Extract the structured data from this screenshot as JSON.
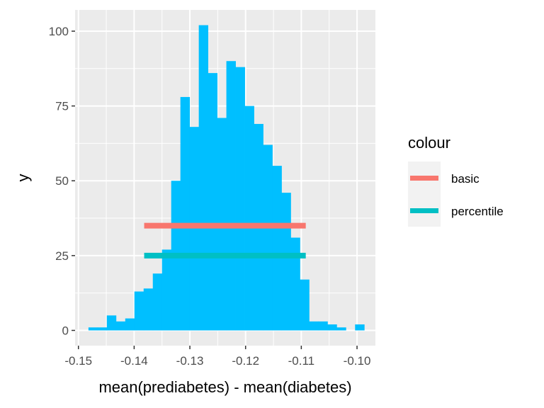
{
  "chart_data": {
    "type": "histogram",
    "xlabel": "mean(prediabetes) - mean(diabetes)",
    "ylabel": "y",
    "xlim": [
      -0.1506,
      -0.0967
    ],
    "ylim": [
      -5.1,
      107.1
    ],
    "x_ticks": [
      -0.15,
      -0.14,
      -0.13,
      -0.12,
      -0.11,
      -0.1
    ],
    "x_tick_labels": [
      "-0.15",
      "-0.14",
      "-0.13",
      "-0.12",
      "-0.11",
      "-0.10"
    ],
    "y_ticks": [
      0,
      25,
      50,
      75,
      100
    ],
    "y_tick_labels": [
      "0",
      "25",
      "50",
      "75",
      "100"
    ],
    "grid": true,
    "bins": {
      "start": -0.1482,
      "width": 0.00165,
      "counts": [
        1,
        1,
        5,
        3,
        4,
        13,
        14,
        19,
        27,
        50,
        78,
        68,
        102,
        86,
        71,
        90,
        88,
        75,
        69,
        62,
        55,
        46,
        31,
        17,
        3,
        3,
        2,
        1,
        0,
        2
      ],
      "color": "#00BFFF"
    },
    "segments": [
      {
        "name": "basic",
        "x0": -0.1382,
        "x1": -0.1092,
        "y": 35,
        "color": "#F8766D"
      },
      {
        "name": "percentile",
        "x0": -0.1382,
        "x1": -0.1092,
        "y": 25,
        "color": "#00BFC4"
      }
    ],
    "legend": {
      "title": "colour",
      "position": "right",
      "entries": [
        {
          "label": "basic",
          "color": "#F8766D"
        },
        {
          "label": "percentile",
          "color": "#00BFC4"
        }
      ]
    }
  }
}
